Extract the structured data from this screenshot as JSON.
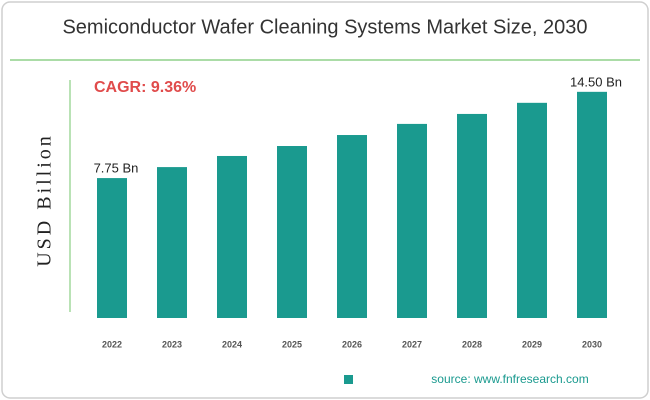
{
  "chart_data": {
    "type": "bar",
    "title": "Semiconductor Wafer Cleaning Systems Market Size, 2030",
    "ylabel": "USD Billion",
    "annotation": "CAGR: 9.36%",
    "source": "source: www.fnfresearch.com",
    "categories": [
      "2022",
      "2023",
      "2024",
      "2025",
      "2026",
      "2027",
      "2028",
      "2029",
      "2030"
    ],
    "values": [
      7.75,
      8.61,
      9.48,
      10.26,
      11.12,
      11.99,
      12.77,
      13.64,
      14.5
    ],
    "value_labels": [
      "7.75 Bn",
      null,
      null,
      null,
      null,
      null,
      null,
      null,
      "14.50 Bn"
    ],
    "color": "#1a9a8f",
    "ylim": [
      -3.2,
      16.6
    ]
  }
}
